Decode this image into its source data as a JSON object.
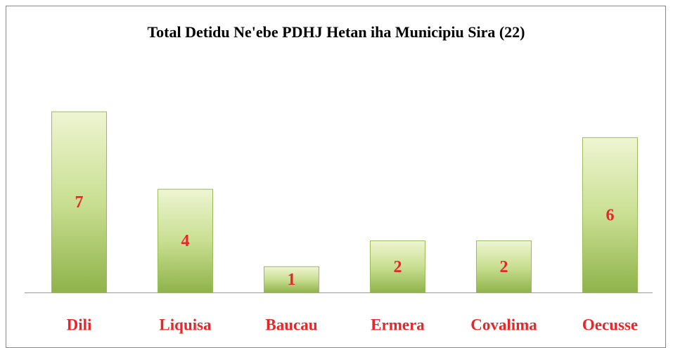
{
  "chart_data": {
    "type": "bar",
    "title": "Total Detidu Ne'ebe PDHJ Hetan iha Municipiu Sira (22)",
    "categories": [
      "Dili",
      "Liquisa",
      "Baucau",
      "Ermera",
      "Covalima",
      "Oecusse"
    ],
    "values": [
      7,
      4,
      1,
      2,
      2,
      6
    ],
    "color": "#9bbb59",
    "label_color": "#e8262a"
  }
}
